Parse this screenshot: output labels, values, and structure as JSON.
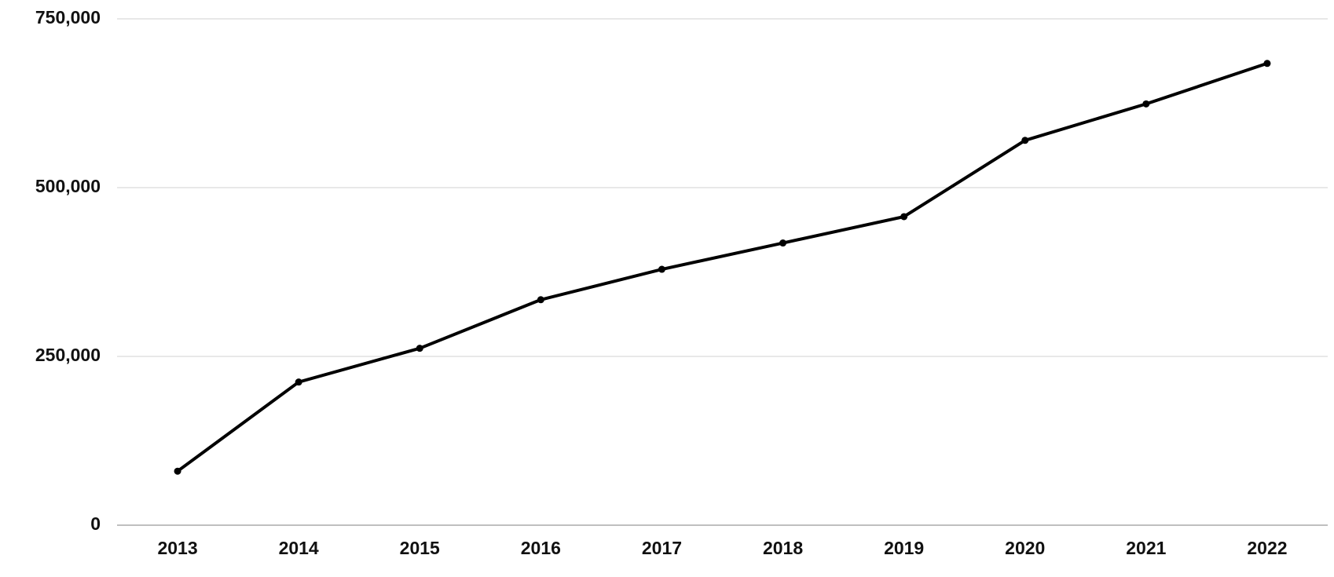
{
  "chart_data": {
    "type": "line",
    "categories": [
      "2013",
      "2014",
      "2015",
      "2016",
      "2017",
      "2018",
      "2019",
      "2020",
      "2021",
      "2022"
    ],
    "values": [
      80000,
      212000,
      262000,
      334000,
      379000,
      418000,
      457000,
      570000,
      624000,
      684000
    ],
    "color": "#000000",
    "ylim": [
      0,
      750000
    ],
    "yticks": [
      0,
      {
        "value": 250000,
        "label": "250,000"
      },
      {
        "value": 500000,
        "label": "500,000"
      },
      {
        "value": 750000,
        "label": "750,000"
      }
    ],
    "grid": true
  }
}
